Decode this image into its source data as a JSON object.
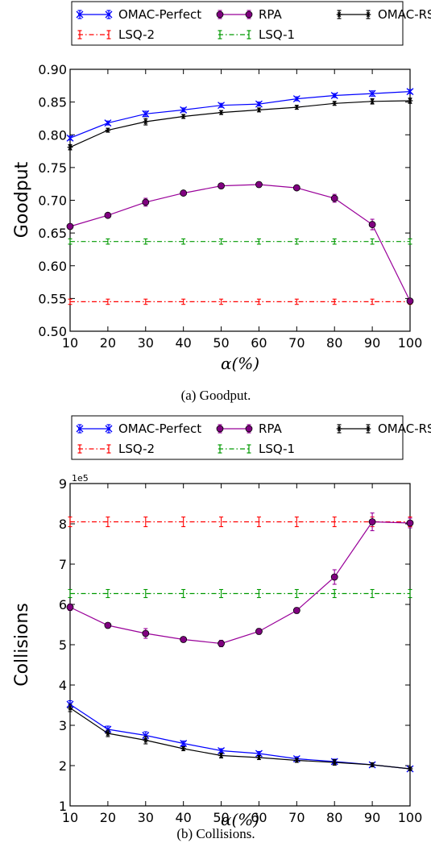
{
  "chart_data": [
    {
      "type": "line",
      "caption": "(a) Goodput.",
      "ylabel": "Goodput",
      "xlabel": "α(%)",
      "x": [
        10,
        20,
        30,
        40,
        50,
        60,
        70,
        80,
        90,
        100
      ],
      "xlim": [
        10,
        100
      ],
      "ylim": [
        0.5,
        0.9
      ],
      "yticks": [
        "0.50",
        "0.55",
        "0.60",
        "0.65",
        "0.70",
        "0.75",
        "0.80",
        "0.85",
        "0.90"
      ],
      "ytick_values": [
        0.5,
        0.55,
        0.6,
        0.65,
        0.7,
        0.75,
        0.8,
        0.85,
        0.9
      ],
      "xticks": [
        "10",
        "20",
        "30",
        "40",
        "50",
        "60",
        "70",
        "80",
        "90",
        "100"
      ],
      "legend_position": "top",
      "series": [
        {
          "name": "OMAC-Perfect",
          "color": "#0000ff",
          "marker": "x",
          "dash": "solid",
          "values": [
            0.795,
            0.818,
            0.832,
            0.838,
            0.845,
            0.847,
            0.855,
            0.86,
            0.863,
            0.866
          ],
          "err": [
            0.003,
            0.003,
            0.004,
            0.003,
            0.003,
            0.003,
            0.003,
            0.003,
            0.004,
            0.003
          ]
        },
        {
          "name": "LSQ-2",
          "color": "#ff0000",
          "marker": "none",
          "dash": "dashdot",
          "values": [
            0.545,
            0.545,
            0.545,
            0.545,
            0.545,
            0.545,
            0.545,
            0.545,
            0.545,
            0.545
          ],
          "err": [
            0.004,
            0.004,
            0.004,
            0.004,
            0.004,
            0.004,
            0.004,
            0.004,
            0.004,
            0.004
          ]
        },
        {
          "name": "RPA",
          "color": "#990099",
          "marker": "o",
          "dash": "solid",
          "values": [
            0.66,
            0.677,
            0.697,
            0.711,
            0.722,
            0.724,
            0.719,
            0.703,
            0.663,
            0.546
          ],
          "err": [
            0.004,
            0.003,
            0.006,
            0.003,
            0.002,
            0.002,
            0.003,
            0.006,
            0.008,
            0.004
          ]
        },
        {
          "name": "LSQ-1",
          "color": "#009900",
          "marker": "none",
          "dash": "dashdot",
          "values": [
            0.637,
            0.637,
            0.637,
            0.637,
            0.637,
            0.637,
            0.637,
            0.637,
            0.637,
            0.637
          ],
          "err": [
            0.004,
            0.004,
            0.004,
            0.004,
            0.004,
            0.004,
            0.004,
            0.004,
            0.004,
            0.004
          ]
        },
        {
          "name": "OMAC-RSSI",
          "color": "#000000",
          "marker": "star",
          "dash": "solid",
          "values": [
            0.781,
            0.807,
            0.82,
            0.828,
            0.834,
            0.838,
            0.842,
            0.848,
            0.851,
            0.852
          ],
          "err": [
            0.004,
            0.003,
            0.005,
            0.003,
            0.003,
            0.003,
            0.003,
            0.003,
            0.004,
            0.004
          ]
        }
      ]
    },
    {
      "type": "line",
      "caption": "(b) Collisions.",
      "ylabel": "Collisions",
      "xlabel": "α(%)",
      "multiplier_label": "1e5",
      "x": [
        10,
        20,
        30,
        40,
        50,
        60,
        70,
        80,
        90,
        100
      ],
      "xlim": [
        10,
        100
      ],
      "ylim": [
        100000,
        900000
      ],
      "yticks": [
        "1",
        "2",
        "3",
        "4",
        "5",
        "6",
        "7",
        "8",
        "9"
      ],
      "ytick_values": [
        100000,
        200000,
        300000,
        400000,
        500000,
        600000,
        700000,
        800000,
        900000
      ],
      "xticks": [
        "10",
        "20",
        "30",
        "40",
        "50",
        "60",
        "70",
        "80",
        "90",
        "100"
      ],
      "legend_position": "top",
      "series": [
        {
          "name": "OMAC-Perfect",
          "color": "#0000ff",
          "marker": "x",
          "dash": "solid",
          "values": [
            352000,
            290000,
            275000,
            255000,
            237000,
            230000,
            217000,
            210000,
            202000,
            192000
          ],
          "err": [
            9000,
            8000,
            9000,
            6000,
            5000,
            5000,
            5000,
            6000,
            5000,
            4000
          ]
        },
        {
          "name": "LSQ-2",
          "color": "#ff0000",
          "marker": "none",
          "dash": "dashdot",
          "values": [
            805000,
            805000,
            805000,
            805000,
            805000,
            805000,
            805000,
            805000,
            805000,
            805000
          ],
          "err": [
            12000,
            12000,
            12000,
            12000,
            12000,
            12000,
            12000,
            12000,
            12000,
            12000
          ]
        },
        {
          "name": "RPA",
          "color": "#990099",
          "marker": "o",
          "dash": "solid",
          "values": [
            593000,
            548000,
            528000,
            513000,
            503000,
            533000,
            585000,
            668000,
            805000,
            802000
          ],
          "err": [
            8000,
            6000,
            12000,
            6000,
            8000,
            7000,
            7000,
            18000,
            22000,
            12000
          ]
        },
        {
          "name": "LSQ-1",
          "color": "#009900",
          "marker": "none",
          "dash": "dashdot",
          "values": [
            627000,
            627000,
            627000,
            627000,
            627000,
            627000,
            627000,
            627000,
            627000,
            627000
          ],
          "err": [
            10000,
            10000,
            10000,
            10000,
            10000,
            10000,
            10000,
            10000,
            10000,
            10000
          ]
        },
        {
          "name": "OMAC-RSSI",
          "color": "#000000",
          "marker": "star",
          "dash": "solid",
          "values": [
            343000,
            280000,
            263000,
            242000,
            225000,
            220000,
            213000,
            208000,
            202000,
            192000
          ],
          "err": [
            9000,
            8000,
            9000,
            5000,
            6000,
            5000,
            5000,
            7000,
            5000,
            4000
          ]
        }
      ]
    }
  ]
}
